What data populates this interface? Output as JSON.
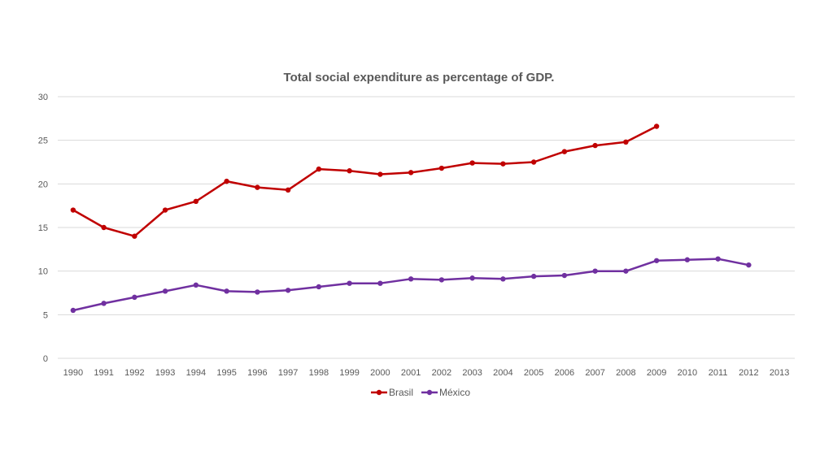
{
  "chart_data": {
    "type": "line",
    "title": "Total social expenditure as percentage of GDP.",
    "xlabel": "",
    "ylabel": "",
    "ylim": [
      0,
      30
    ],
    "yticks": [
      0,
      5,
      10,
      15,
      20,
      25,
      30
    ],
    "grid": true,
    "legend_position": "bottom",
    "categories": [
      "1990",
      "1991",
      "1992",
      "1993",
      "1994",
      "1995",
      "1996",
      "1997",
      "1998",
      "1999",
      "2000",
      "2001",
      "2002",
      "2003",
      "2004",
      "2005",
      "2006",
      "2007",
      "2008",
      "2009",
      "2010",
      "2011",
      "2012",
      "2013"
    ],
    "series": [
      {
        "name": "Brasil",
        "color": "#c00000",
        "values": [
          17.0,
          15.0,
          14.0,
          17.0,
          18.0,
          20.3,
          19.6,
          19.3,
          21.7,
          21.5,
          21.1,
          21.3,
          21.8,
          22.4,
          22.3,
          22.5,
          23.7,
          24.4,
          24.8,
          26.6,
          null,
          null,
          null,
          null
        ]
      },
      {
        "name": "México",
        "color": "#7030a0",
        "values": [
          5.5,
          6.3,
          7.0,
          7.7,
          8.4,
          7.7,
          7.6,
          7.8,
          8.2,
          8.6,
          8.6,
          9.1,
          9.0,
          9.2,
          9.1,
          9.4,
          9.5,
          10.0,
          10.0,
          11.2,
          11.3,
          11.4,
          10.7,
          null
        ]
      }
    ]
  }
}
